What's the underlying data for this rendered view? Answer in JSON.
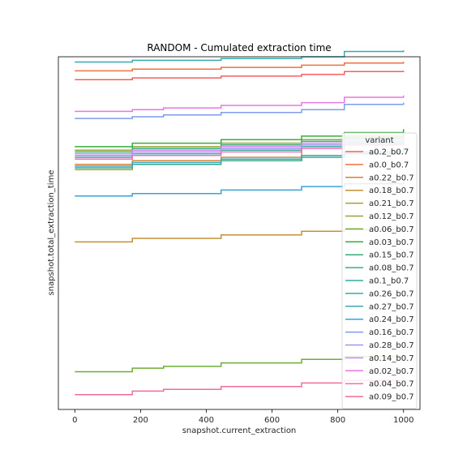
{
  "chart_data": {
    "type": "line",
    "title": "RANDOM - Cumulated extraction time",
    "xlabel": "snapshot.current_extraction",
    "ylabel": "snapshot.total_extraction_time",
    "xlim": [
      -50,
      1050
    ],
    "ylim": [
      0,
      100
    ],
    "x_ticks": [
      0,
      200,
      400,
      600,
      800,
      1000
    ],
    "y_ticks_visible": false,
    "grid": false,
    "legend": {
      "title": "variant",
      "placement": "right"
    },
    "series": [
      {
        "name": "a0.2_b0.7",
        "color": "#f45f5e",
        "values": [
          [
            0,
            93.5
          ],
          [
            175,
            94.0
          ],
          [
            445,
            94.5
          ],
          [
            690,
            95.0
          ],
          [
            820,
            95.8
          ],
          [
            1000,
            96.0
          ]
        ]
      },
      {
        "name": "a0.0_b0.7",
        "color": "#ec7240",
        "values": [
          [
            0,
            96.0
          ],
          [
            175,
            96.5
          ],
          [
            445,
            97.0
          ],
          [
            690,
            97.6
          ],
          [
            820,
            98.2
          ],
          [
            1000,
            98.6
          ]
        ]
      },
      {
        "name": "a0.22_b0.7",
        "color": "#d38336",
        "values": [
          [
            0,
            69.5
          ],
          [
            175,
            70.5
          ],
          [
            445,
            71.5
          ],
          [
            690,
            75.0
          ],
          [
            820,
            75.5
          ],
          [
            1000,
            76.2
          ]
        ]
      },
      {
        "name": "a0.18_b0.7",
        "color": "#c29037",
        "values": [
          [
            0,
            47.5
          ],
          [
            175,
            48.5
          ],
          [
            445,
            49.5
          ],
          [
            690,
            50.5
          ],
          [
            820,
            51.0
          ],
          [
            1000,
            51.5
          ]
        ]
      },
      {
        "name": "a0.21_b0.7",
        "color": "#ae9c37",
        "values": [
          [
            0,
            68.0
          ],
          [
            175,
            69.5
          ],
          [
            445,
            71.0
          ],
          [
            690,
            72.0
          ],
          [
            820,
            73.0
          ],
          [
            1000,
            74.0
          ]
        ]
      },
      {
        "name": "a0.12_b0.7",
        "color": "#96a436",
        "values": [
          [
            0,
            73.5
          ],
          [
            175,
            74.5
          ],
          [
            445,
            75.5
          ],
          [
            690,
            76.5
          ],
          [
            820,
            77.5
          ],
          [
            1000,
            78.5
          ]
        ]
      },
      {
        "name": "a0.06_b0.7",
        "color": "#6fac35",
        "values": [
          [
            0,
            10.7
          ],
          [
            175,
            11.7
          ],
          [
            270,
            12.2
          ],
          [
            445,
            13.2
          ],
          [
            690,
            14.2
          ],
          [
            820,
            15.0
          ],
          [
            1000,
            15.6
          ]
        ]
      },
      {
        "name": "a0.03_b0.7",
        "color": "#37ad41",
        "values": [
          [
            0,
            74.5
          ],
          [
            175,
            75.5
          ],
          [
            445,
            76.5
          ],
          [
            690,
            77.5
          ],
          [
            820,
            78.5
          ],
          [
            1000,
            79.5
          ]
        ]
      },
      {
        "name": "a0.15_b0.7",
        "color": "#36ad76",
        "values": [
          [
            0,
            73.0
          ],
          [
            175,
            74.0
          ],
          [
            445,
            75.0
          ],
          [
            690,
            76.0
          ],
          [
            820,
            77.0
          ],
          [
            1000,
            78.0
          ]
        ]
      },
      {
        "name": "a0.08_b0.7",
        "color": "#38aa8f",
        "values": [
          [
            0,
            68.5
          ],
          [
            175,
            69.5
          ],
          [
            445,
            70.5
          ],
          [
            690,
            71.5
          ],
          [
            820,
            72.5
          ],
          [
            1000,
            73.5
          ]
        ]
      },
      {
        "name": "a0.1_b0.7",
        "color": "#36aa9f",
        "values": [
          [
            0,
            71.5
          ],
          [
            175,
            72.5
          ],
          [
            445,
            73.5
          ],
          [
            690,
            74.5
          ],
          [
            820,
            75.5
          ],
          [
            1000,
            76.5
          ]
        ]
      },
      {
        "name": "a0.26_b0.7",
        "color": "#38a9ad",
        "values": [
          [
            0,
            98.5
          ],
          [
            175,
            99.0
          ],
          [
            445,
            99.5
          ],
          [
            690,
            100.0
          ],
          [
            820,
            101.5
          ],
          [
            1000,
            101.8
          ]
        ]
      },
      {
        "name": "a0.27_b0.7",
        "color": "#3ca5bb",
        "values": [
          [
            0,
            69.0
          ],
          [
            175,
            70.0
          ],
          [
            445,
            71.0
          ],
          [
            690,
            72.0
          ],
          [
            820,
            73.0
          ],
          [
            1000,
            74.0
          ]
        ]
      },
      {
        "name": "a0.24_b0.7",
        "color": "#3ba2d6",
        "values": [
          [
            0,
            60.5
          ],
          [
            175,
            61.2
          ],
          [
            445,
            62.2
          ],
          [
            690,
            63.2
          ],
          [
            820,
            64.0
          ],
          [
            1000,
            64.5
          ]
        ]
      },
      {
        "name": "a0.16_b0.7",
        "color": "#7d9ced",
        "values": [
          [
            0,
            82.5
          ],
          [
            175,
            83.0
          ],
          [
            270,
            83.5
          ],
          [
            445,
            84.2
          ],
          [
            690,
            85.0
          ],
          [
            820,
            86.5
          ],
          [
            1000,
            87.0
          ]
        ]
      },
      {
        "name": "a0.28_b0.7",
        "color": "#a492ef",
        "values": [
          [
            0,
            72.0
          ],
          [
            175,
            73.0
          ],
          [
            445,
            74.0
          ],
          [
            690,
            75.0
          ],
          [
            820,
            76.0
          ],
          [
            1000,
            77.0
          ]
        ]
      },
      {
        "name": "a0.14_b0.7",
        "color": "#cc86f3",
        "values": [
          [
            0,
            72.5
          ],
          [
            175,
            73.5
          ],
          [
            445,
            74.5
          ],
          [
            690,
            75.5
          ],
          [
            820,
            76.5
          ],
          [
            1000,
            77.5
          ]
        ]
      },
      {
        "name": "a0.02_b0.7",
        "color": "#ea76e3",
        "values": [
          [
            0,
            84.5
          ],
          [
            175,
            85.0
          ],
          [
            270,
            85.5
          ],
          [
            445,
            86.2
          ],
          [
            690,
            87.0
          ],
          [
            820,
            88.5
          ],
          [
            1000,
            89.0
          ]
        ]
      },
      {
        "name": "a0.04_b0.7",
        "color": "#f06fba",
        "values": [
          [
            0,
            71.0
          ],
          [
            175,
            72.0
          ],
          [
            445,
            73.0
          ],
          [
            690,
            74.0
          ],
          [
            820,
            75.0
          ],
          [
            1000,
            76.0
          ]
        ]
      },
      {
        "name": "a0.09_b0.7",
        "color": "#f16d96",
        "values": [
          [
            0,
            4.2
          ],
          [
            175,
            5.2
          ],
          [
            270,
            5.7
          ],
          [
            445,
            6.5
          ],
          [
            690,
            7.5
          ],
          [
            820,
            8.2
          ],
          [
            1000,
            8.8
          ]
        ]
      }
    ]
  }
}
